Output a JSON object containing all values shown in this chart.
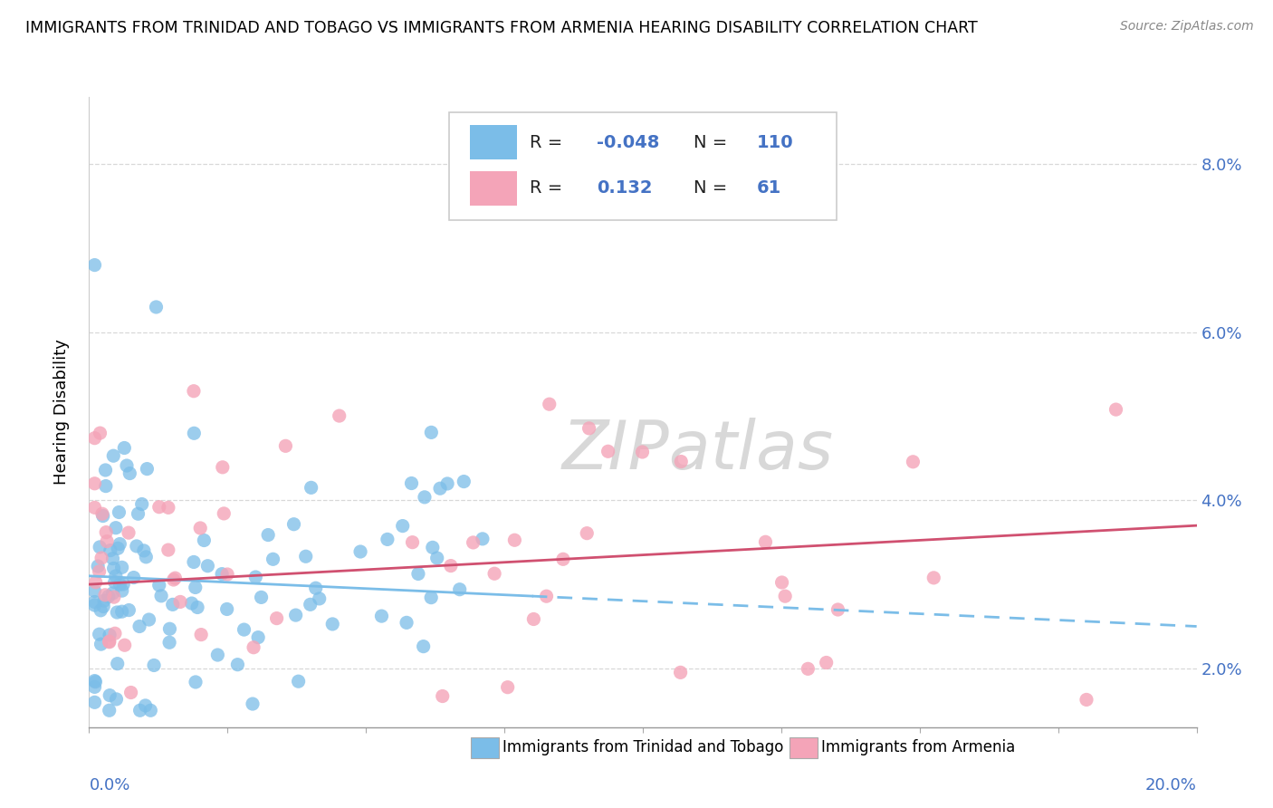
{
  "title": "IMMIGRANTS FROM TRINIDAD AND TOBAGO VS IMMIGRANTS FROM ARMENIA HEARING DISABILITY CORRELATION CHART",
  "source": "Source: ZipAtlas.com",
  "ylabel": "Hearing Disability",
  "xlim": [
    0.0,
    0.2
  ],
  "ylim": [
    0.013,
    0.088
  ],
  "ytick_pos": [
    0.02,
    0.04,
    0.06,
    0.08
  ],
  "ytick_labels": [
    "2.0%",
    "4.0%",
    "6.0%",
    "8.0%"
  ],
  "xtick_pos": [
    0.0,
    0.025,
    0.05,
    0.075,
    0.1,
    0.125,
    0.15,
    0.175,
    0.2
  ],
  "series1_color": "#7bbde8",
  "series2_color": "#f4a4b8",
  "series1_label": "Immigrants from Trinidad and Tobago",
  "series2_label": "Immigrants from Armenia",
  "legend_r1": "-0.048",
  "legend_n1": "110",
  "legend_r2": "0.132",
  "legend_n2": "61",
  "watermark": "ZIPatlas",
  "background_color": "#ffffff",
  "grid_color": "#d8d8d8",
  "title_fontsize": 12.5,
  "axis_label_color": "#4472c4",
  "blue_trend_start": 0.031,
  "blue_trend_end": 0.025,
  "pink_trend_start": 0.03,
  "pink_trend_end": 0.037
}
